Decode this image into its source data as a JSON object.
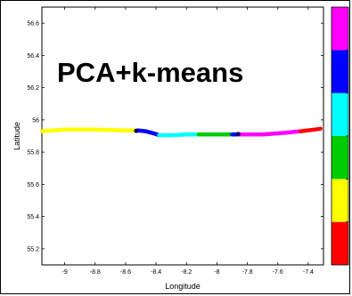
{
  "chart_data": {
    "type": "line",
    "title": "PCA+k-means",
    "xlabel": "Longitude",
    "ylabel": "Latitude",
    "xlim": [
      -9.15,
      -7.3
    ],
    "ylim": [
      55.1,
      56.7
    ],
    "x_ticks": [
      -9,
      -8.8,
      -8.6,
      -8.4,
      -8.2,
      -8,
      -7.8,
      -7.6,
      -7.4
    ],
    "x_tick_labels": [
      "-9",
      "-8.8",
      "-8.6",
      "-8.4",
      "-8.2",
      "-8",
      "-7.8",
      "-7.6",
      "-7.4"
    ],
    "y_ticks": [
      55.2,
      55.4,
      55.6,
      55.8,
      56,
      56.2,
      56.4,
      56.6
    ],
    "y_tick_labels": [
      "55.2",
      "55.4",
      "55.6",
      "55.8",
      "56",
      "56.2",
      "56.4",
      "56.6"
    ],
    "grid": false,
    "segments": [
      {
        "cluster": 2,
        "color": "#ffff00",
        "points": [
          [
            -9.15,
            55.93
          ],
          [
            -9.0,
            55.94
          ],
          [
            -8.8,
            55.94
          ],
          [
            -8.6,
            55.935
          ],
          [
            -8.52,
            55.935
          ]
        ]
      },
      {
        "cluster": 1,
        "color": "#0000ff",
        "points": [
          [
            -8.52,
            55.935
          ],
          [
            -8.47,
            55.93
          ],
          [
            -8.41,
            55.915
          ],
          [
            -8.38,
            55.905
          ]
        ]
      },
      {
        "cluster": 3,
        "color": "#00ffff",
        "points": [
          [
            -8.38,
            55.905
          ],
          [
            -8.3,
            55.905
          ],
          [
            -8.2,
            55.91
          ],
          [
            -8.12,
            55.91
          ]
        ]
      },
      {
        "cluster": 2,
        "color": "#00cc00",
        "points": [
          [
            -8.12,
            55.91
          ],
          [
            -8.0,
            55.91
          ],
          [
            -7.9,
            55.91
          ]
        ]
      },
      {
        "cluster": 1,
        "color": "#0000ff",
        "points": [
          [
            -7.9,
            55.91
          ],
          [
            -7.86,
            55.91
          ]
        ]
      },
      {
        "cluster": 5,
        "color": "#ff00ff",
        "points": [
          [
            -7.86,
            55.91
          ],
          [
            -7.7,
            55.91
          ],
          [
            -7.55,
            55.92
          ],
          [
            -7.45,
            55.93
          ]
        ]
      },
      {
        "cluster": 0,
        "color": "#ff0000",
        "points": [
          [
            -7.45,
            55.93
          ],
          [
            -7.36,
            55.94
          ],
          [
            -7.32,
            55.945
          ]
        ]
      }
    ],
    "markers": [
      {
        "x": -8.53,
        "y": 55.932,
        "color": "#000066"
      },
      {
        "x": -7.86,
        "y": 55.912,
        "color": "#000066"
      }
    ],
    "colorbar": {
      "colors": [
        "#ff0000",
        "#ffff00",
        "#00cc00",
        "#00ffff",
        "#0000ff",
        "#ff00ff"
      ]
    }
  }
}
